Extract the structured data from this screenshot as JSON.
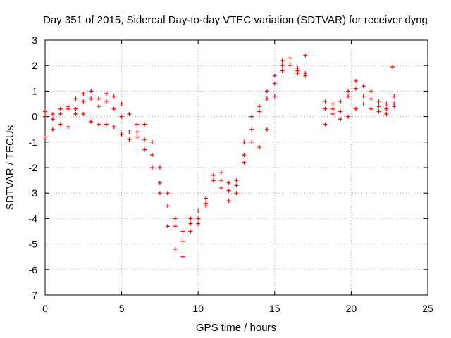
{
  "chart_data": {
    "type": "scatter",
    "title": "Day 351 of 2015, Sidereal Day-to-day VTEC variation (SDTVAR) for receiver dyng",
    "xlabel": "GPS time / hours",
    "ylabel": "SDTVAR / TECUs",
    "xlim": [
      0,
      25
    ],
    "ylim": [
      -7,
      3
    ],
    "xticks": [
      0,
      5,
      10,
      15,
      20,
      25
    ],
    "yticks": [
      -7,
      -6,
      -5,
      -4,
      -3,
      -2,
      -1,
      0,
      1,
      2,
      3
    ],
    "grid": true,
    "legend": "none",
    "marker": "+",
    "color": "#ff0000",
    "series": [
      {
        "x": [
          0,
          0.5,
          1,
          1.5,
          2,
          2.5,
          3,
          3.5,
          4,
          4.5,
          5,
          5.5,
          6,
          6.5,
          7,
          7.5,
          8,
          8.5,
          9,
          9.5,
          10,
          10.5,
          11,
          11.5,
          12,
          12.5,
          13,
          13.5,
          14,
          14.5,
          15,
          15.5,
          16,
          16.5,
          17
        ],
        "y": [
          0.2,
          0.1,
          0.3,
          0.4,
          0.7,
          0.9,
          1.0,
          0.7,
          0.9,
          0.8,
          0.5,
          0.1,
          -0.3,
          -0.3,
          -1.0,
          -2.0,
          -3.0,
          -4.0,
          -4.5,
          -4.2,
          -4.0,
          -3.5,
          -2.5,
          -2.2,
          -2.6,
          -2.5,
          -1.5,
          -0.5,
          0.2,
          0.7,
          1.3,
          2.0,
          2.3,
          1.9,
          1.7
        ]
      },
      {
        "x": [
          0,
          0.5,
          1,
          1.5,
          2,
          2.5,
          3,
          3.5,
          4,
          4.5,
          5,
          5.5,
          6,
          6.5,
          7,
          7.5,
          8,
          8.5,
          9,
          9.5,
          10,
          10.5,
          11,
          11.5,
          12,
          12.5,
          13,
          13.5,
          14,
          14.5,
          15,
          15.5,
          16,
          16.5,
          17
        ],
        "y": [
          0.0,
          -0.1,
          0.1,
          0.3,
          0.3,
          0.6,
          0.7,
          0.4,
          0.6,
          0.3,
          0.0,
          -0.6,
          -0.6,
          -0.9,
          -1.5,
          -2.6,
          -3.5,
          -4.3,
          -4.9,
          -4.0,
          -3.7,
          -3.2,
          -2.3,
          -2.5,
          -2.9,
          -2.7,
          -1.0,
          0.0,
          0.4,
          1.0,
          1.6,
          2.2,
          2.0,
          1.7,
          1.6
        ]
      },
      {
        "x": [
          0,
          0.5,
          1,
          1.5,
          2,
          2.5,
          3,
          3.5,
          4,
          4.5,
          5,
          5.5,
          6,
          6.5,
          7,
          7.5,
          8,
          8.5,
          9,
          9.5,
          10,
          10.5,
          11,
          11.5,
          12,
          12.5,
          13,
          13.5,
          14,
          14.5,
          15,
          15.5,
          16,
          16.5,
          17
        ],
        "y": [
          -0.8,
          -0.5,
          -0.3,
          -0.4,
          0.1,
          0.1,
          -0.2,
          -0.3,
          -0.3,
          -0.4,
          -0.7,
          -0.9,
          -0.8,
          -1.3,
          -2.0,
          -3.0,
          -4.3,
          -5.2,
          -5.5,
          -4.5,
          -4.2,
          -3.4,
          -2.5,
          -2.8,
          -3.3,
          -3.0,
          -1.8,
          -1.0,
          -1.2,
          -0.5,
          0.8,
          1.8,
          2.1,
          1.8,
          2.4
        ]
      },
      {
        "x": [
          18.3,
          18.8,
          19.3,
          19.8,
          20.3,
          20.8,
          21.3,
          21.8,
          22.3,
          22.8
        ],
        "y": [
          0.6,
          0.3,
          0.6,
          1.0,
          1.4,
          1.2,
          1.0,
          0.6,
          0.5,
          0.8
        ]
      },
      {
        "x": [
          18.3,
          18.8,
          19.3,
          19.8,
          20.3,
          20.8,
          21.3,
          21.8,
          22.3,
          22.8
        ],
        "y": [
          0.3,
          0.5,
          0.2,
          0.8,
          1.1,
          0.8,
          0.7,
          0.4,
          0.1,
          0.5
        ]
      },
      {
        "x": [
          18.3,
          18.8,
          19.3,
          19.8,
          20.3,
          20.8,
          21.3,
          21.8,
          22.3,
          22.8
        ],
        "y": [
          -0.3,
          0.1,
          -0.1,
          0.0,
          0.3,
          0.5,
          0.3,
          0.2,
          0.3,
          0.4
        ]
      },
      {
        "x": [
          22.7
        ],
        "y": [
          1.95
        ]
      }
    ]
  }
}
